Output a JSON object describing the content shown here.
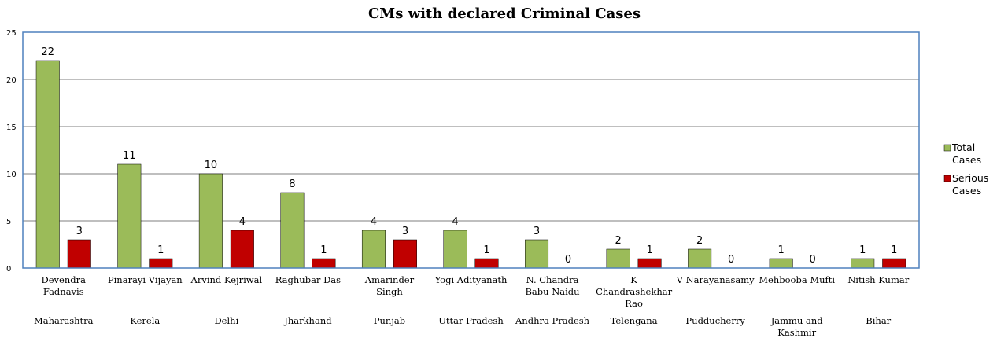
{
  "chart_data": {
    "type": "bar",
    "title": "CMs with declared  Criminal Cases",
    "xlabel": "",
    "ylabel": "",
    "ylim": [
      0,
      25
    ],
    "yticks": [
      "0",
      "5",
      "10",
      "15",
      "20",
      "25"
    ],
    "grid": true,
    "legend_position": "right",
    "categories": [
      [
        "Devendra",
        "Fadnavis"
      ],
      [
        "Pinarayi Vijayan"
      ],
      [
        "Arvind Kejriwal"
      ],
      [
        "Raghubar Das"
      ],
      [
        "Amarinder",
        "Singh"
      ],
      [
        "Yogi Adityanath"
      ],
      [
        "N. Chandra",
        "Babu Naidu"
      ],
      [
        "K",
        "Chandrashekhar",
        "Rao"
      ],
      [
        "V Narayanasamy"
      ],
      [
        "Mehbooba Mufti"
      ],
      [
        "Nitish Kumar"
      ]
    ],
    "states": [
      [
        "Maharashtra"
      ],
      [
        "Kerela"
      ],
      [
        "Delhi"
      ],
      [
        "Jharkhand"
      ],
      [
        "Punjab"
      ],
      [
        "Uttar Pradesh"
      ],
      [
        "Andhra Pradesh"
      ],
      [
        "Telengana"
      ],
      [
        "Pudducherry"
      ],
      [
        "Jammu and",
        "Kashmir"
      ],
      [
        "Bihar"
      ]
    ],
    "series": [
      {
        "name": [
          "Total",
          "Cases"
        ],
        "color": "#9bbb59",
        "values": [
          22,
          11,
          10,
          8,
          4,
          4,
          3,
          2,
          2,
          1,
          1
        ]
      },
      {
        "name": [
          "Serious",
          "Cases"
        ],
        "color": "#c00000",
        "values": [
          3,
          1,
          4,
          1,
          3,
          1,
          0,
          1,
          0,
          0,
          1
        ]
      }
    ],
    "colors": {
      "plot_border": "#4f81bd",
      "gridline": "#000000",
      "bar_stroke": "#000000"
    }
  }
}
